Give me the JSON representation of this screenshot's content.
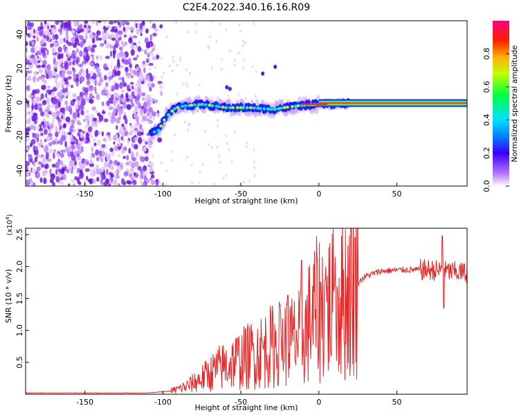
{
  "title": "C2E4.2022.340.16.16.R09",
  "chart_data": [
    {
      "type": "heatmap",
      "xlabel": "Height of straight line (km)",
      "ylabel": "Frequency (Hz)",
      "xlim": [
        -188,
        95
      ],
      "ylim": [
        -49,
        48
      ],
      "xticks": [
        -150,
        -100,
        -50,
        0,
        50
      ],
      "yticks": [
        -40,
        -20,
        0,
        20,
        40
      ],
      "colorbar": {
        "label": "Normalized spectral amplitude",
        "range": [
          0.0,
          1.0
        ],
        "ticks": [
          0.0,
          0.2,
          0.4,
          0.6,
          0.8
        ]
      },
      "signal_track": [
        {
          "x": -108,
          "y": -18
        },
        {
          "x": -103,
          "y": -16
        },
        {
          "x": -98,
          "y": -8
        },
        {
          "x": -94,
          "y": -4
        },
        {
          "x": -88,
          "y": -2
        },
        {
          "x": -75,
          "y": -1
        },
        {
          "x": -60,
          "y": -3
        },
        {
          "x": -45,
          "y": -3
        },
        {
          "x": -30,
          "y": -4
        },
        {
          "x": -15,
          "y": -2
        },
        {
          "x": 0,
          "y": -1
        },
        {
          "x": 20,
          "y": -0.5
        },
        {
          "x": 50,
          "y": -0.3
        },
        {
          "x": 95,
          "y": -0.2
        }
      ]
    },
    {
      "type": "line",
      "xlabel": "Height of straight line (km)",
      "ylabel": "SNR (10 * v/v)",
      "y_multiplier_label": "(x10",
      "y_multiplier_exp": "4",
      "y_multiplier_close": ")",
      "xlim": [
        -188,
        95
      ],
      "ylim": [
        0,
        2.6
      ],
      "xticks": [
        -150,
        -100,
        -50,
        0,
        50
      ],
      "yticks": [
        0.5,
        1.0,
        1.5,
        2.0,
        2.5
      ],
      "ytick_labels": [
        "0.5",
        "1.0",
        "1.5",
        "2.0",
        "2.5"
      ],
      "series_color": "#ee2222",
      "envelope": [
        {
          "x": -188,
          "y": 0.02
        },
        {
          "x": -110,
          "y": 0.02
        },
        {
          "x": -95,
          "y": 0.05
        },
        {
          "x": -85,
          "y": 0.12
        },
        {
          "x": -75,
          "y": 0.25
        },
        {
          "x": -65,
          "y": 0.4
        },
        {
          "x": -55,
          "y": 0.5
        },
        {
          "x": -45,
          "y": 0.6
        },
        {
          "x": -35,
          "y": 0.7
        },
        {
          "x": -25,
          "y": 0.8
        },
        {
          "x": -15,
          "y": 0.85
        },
        {
          "x": -10,
          "y": 0.9
        },
        {
          "x": -5,
          "y": 1.2
        },
        {
          "x": 0,
          "y": 1.35
        },
        {
          "x": 10,
          "y": 1.4
        },
        {
          "x": 20,
          "y": 1.65
        },
        {
          "x": 30,
          "y": 1.85
        },
        {
          "x": 40,
          "y": 1.93
        },
        {
          "x": 55,
          "y": 1.95
        },
        {
          "x": 70,
          "y": 1.95
        },
        {
          "x": 95,
          "y": 1.9
        }
      ],
      "peaks": [
        {
          "x": -11,
          "y": 2.1
        },
        {
          "x": -20,
          "y": 1.55
        },
        {
          "x": -25,
          "y": 1.4
        },
        {
          "x": 4,
          "y": 1.8
        },
        {
          "x": 10,
          "y": 1.7
        },
        {
          "x": 79,
          "y": 2.48
        },
        {
          "x": 80,
          "y": 1.35
        }
      ]
    }
  ]
}
